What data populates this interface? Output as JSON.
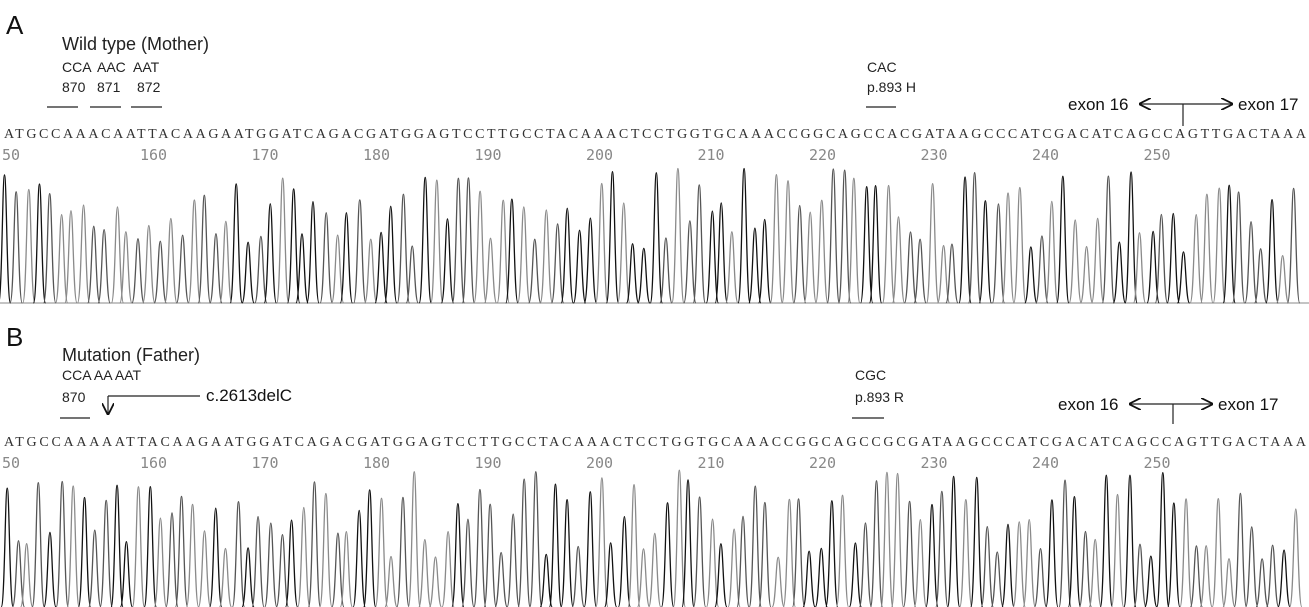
{
  "panels": [
    {
      "label": "A",
      "title": "Wild type (Mother)",
      "codons": [
        "CCA",
        "AAC",
        "AAT"
      ],
      "codon_positions": [
        "870",
        "871",
        "872"
      ],
      "variant_codon": "CAC",
      "variant_protein": "p.893 H",
      "sequence": "ATGCCAAACAATTACAAGAATGGATCAGACGATGGAGTCCTTGCCTACAAACTCCTGGTGCAAACCGGCAGCCACGATAAGCCCATCGACATCAGCCAGTTGACTAAA",
      "positions": [
        "50",
        "160",
        "170",
        "180",
        "190",
        "200",
        "210",
        "220",
        "230",
        "240",
        "250"
      ],
      "exon_left": "exon 16",
      "exon_right": "exon 17"
    },
    {
      "label": "B",
      "title": "Mutation (Father)",
      "codons": [
        "CCA AA AAT"
      ],
      "codon_positions": [
        "870"
      ],
      "deletion": "c.2613delC",
      "variant_codon": "CGC",
      "variant_protein": "p.893 R",
      "sequence": "ATGCCAAAAATTACAAGAATGGATCAGACGATGGAGTCCTTGCCTACAAACTCCTGGTGCAAACCGGCAGCCGCGATAAGCCCATCGACATCAGCCAGTTGACTAAA",
      "positions": [
        "50",
        "160",
        "170",
        "180",
        "190",
        "200",
        "210",
        "220",
        "230",
        "240",
        "250"
      ],
      "exon_left": "exon 16",
      "exon_right": "exon 17"
    }
  ]
}
